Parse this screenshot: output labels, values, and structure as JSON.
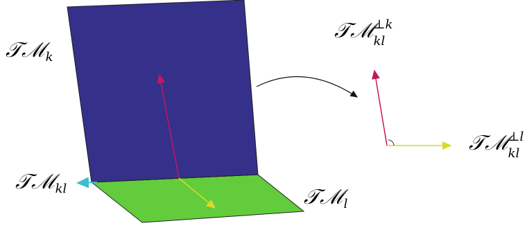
{
  "labels": {
    "tm_k": {
      "base": "𝒯ℳ",
      "sub": "k"
    },
    "tm_kl": {
      "base": "𝒯ℳ",
      "sub": "kl"
    },
    "tm_l": {
      "base": "𝒯ℳ",
      "sub": "l"
    },
    "tm_perp_k": {
      "base": "𝒯ℳ",
      "sup": "⊥k",
      "sub": "kl"
    },
    "tm_perp_l": {
      "base": "𝒯ℳ",
      "sup": "⊥l",
      "sub": "kl"
    }
  },
  "colors": {
    "plane_k": "#35308a",
    "plane_l": "#62cc3c",
    "arrow_red": "#c2185b",
    "arrow_yellow": "#d9d92a",
    "arrow_cyan": "#40bcd0",
    "arrow_curve": "#111111"
  }
}
